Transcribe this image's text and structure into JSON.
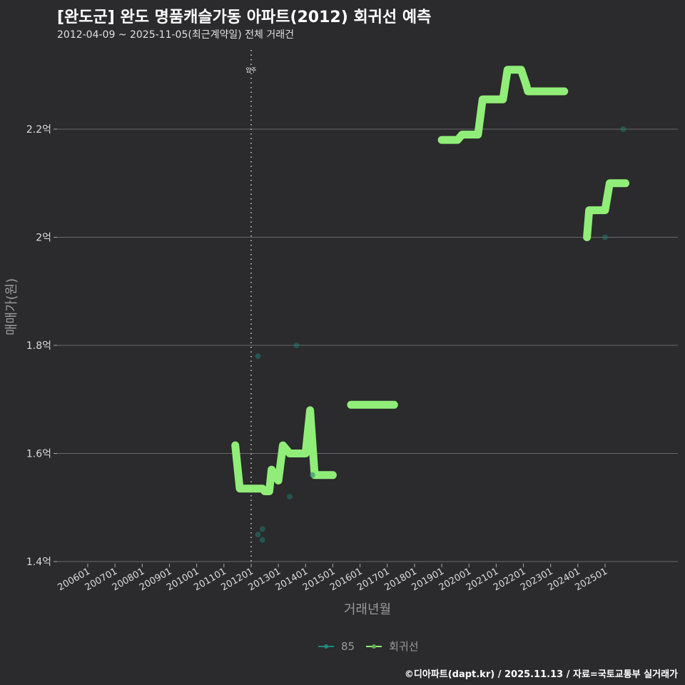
{
  "header": {
    "title": "[완도군] 완도 명품캐슬가동 아파트(2012) 회귀선 예측",
    "subtitle": "2012-04-09 ~ 2025-11-05(최근계약일) 전체 거래건"
  },
  "footer": {
    "credit": "©디아파트(dapt.kr) / 2025.11.13 / 자료=국토교통부 실거래가"
  },
  "legend": {
    "items": [
      {
        "label": "85",
        "color": "#1f8a80"
      },
      {
        "label": "회귀선",
        "color": "#90ee78"
      }
    ]
  },
  "colors": {
    "background": "#2b2a2c",
    "grid": "#6a6a6a",
    "regression": "#90ee78",
    "points": "#1f6b62"
  },
  "chart_data": {
    "type": "line",
    "title": "[완도군] 완도 명품캐슬가동 아파트(2012) 회귀선 예측",
    "subtitle": "2012-04-09 ~ 2025-11-05(최근계약일) 전체 거래건",
    "xlabel": "거래년월",
    "ylabel": "매매가(원)",
    "x_ticks": [
      "200601",
      "200701",
      "200801",
      "200901",
      "201001",
      "201101",
      "201201",
      "201301",
      "201401",
      "201501",
      "201601",
      "201701",
      "201801",
      "201901",
      "202001",
      "202101",
      "202201",
      "202301",
      "202401",
      "202501"
    ],
    "y_ticks": [
      "1.4억",
      "1.6억",
      "1.8억",
      "2억",
      "2.2억"
    ],
    "ylim": [
      1.4,
      2.2
    ],
    "grid": true,
    "legend_position": "bottom",
    "annotation": {
      "label": "입주",
      "x": "201201",
      "style": "dotted vertical line"
    },
    "series": [
      {
        "name": "85",
        "kind": "scatter",
        "points": [
          {
            "x": "2012-04",
            "y": 1.78
          },
          {
            "x": "2012-04",
            "y": 1.45
          },
          {
            "x": "2012-06",
            "y": 1.46
          },
          {
            "x": "2012-06",
            "y": 1.44
          },
          {
            "x": "2013-06",
            "y": 1.52
          },
          {
            "x": "2013-09",
            "y": 1.8
          },
          {
            "x": "2014-04",
            "y": 1.56
          },
          {
            "x": "2025-01",
            "y": 2.0
          },
          {
            "x": "2025-09",
            "y": 2.2
          }
        ]
      },
      {
        "name": "회귀선",
        "kind": "line",
        "segments": [
          [
            {
              "x": "2011-06",
              "y": 1.615
            },
            {
              "x": "2011-08",
              "y": 1.535
            },
            {
              "x": "2012-06",
              "y": 1.535
            },
            {
              "x": "2012-07",
              "y": 1.53
            },
            {
              "x": "2012-09",
              "y": 1.53
            },
            {
              "x": "2012-10",
              "y": 1.57
            },
            {
              "x": "2013-01",
              "y": 1.55
            },
            {
              "x": "2013-03",
              "y": 1.615
            },
            {
              "x": "2013-06",
              "y": 1.6
            },
            {
              "x": "2014-01",
              "y": 1.6
            },
            {
              "x": "2014-03",
              "y": 1.68
            },
            {
              "x": "2014-05",
              "y": 1.56
            },
            {
              "x": "2015-01",
              "y": 1.56
            }
          ],
          [
            {
              "x": "2015-09",
              "y": 1.69
            },
            {
              "x": "2017-04",
              "y": 1.69
            }
          ],
          [
            {
              "x": "2019-01",
              "y": 2.18
            },
            {
              "x": "2019-08",
              "y": 2.18
            },
            {
              "x": "2019-10",
              "y": 2.19
            },
            {
              "x": "2020-05",
              "y": 2.19
            },
            {
              "x": "2020-07",
              "y": 2.255
            },
            {
              "x": "2021-04",
              "y": 2.255
            },
            {
              "x": "2021-06",
              "y": 2.31
            },
            {
              "x": "2021-12",
              "y": 2.31
            },
            {
              "x": "2022-02",
              "y": 2.285
            },
            {
              "x": "2022-03",
              "y": 2.27
            },
            {
              "x": "2023-07",
              "y": 2.27
            }
          ],
          [
            {
              "x": "2024-05",
              "y": 2.0
            },
            {
              "x": "2024-06",
              "y": 2.05
            },
            {
              "x": "2025-01",
              "y": 2.05
            },
            {
              "x": "2025-03",
              "y": 2.1
            },
            {
              "x": "2025-10",
              "y": 2.1
            }
          ]
        ]
      }
    ]
  }
}
